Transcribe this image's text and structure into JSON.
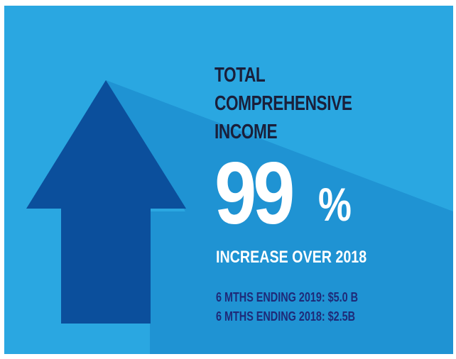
{
  "headline": {
    "lines": [
      "TOTAL",
      "COMPREHENSIVE",
      "INCOME"
    ]
  },
  "metric": {
    "value": "99",
    "unit": "%",
    "caption": "INCREASE OVER 2018"
  },
  "details": [
    "6 MTHS ENDING 2019: $5.0 B",
    "6 MTHS ENDING 2018: $2.5B"
  ],
  "colors": {
    "background": "#2aa7e1",
    "arrow": "#0b4f9c",
    "shadow": "#1f8fd0",
    "headline_text": "#1a1f3a",
    "metric_text": "#ffffff",
    "details_text": "#1e2a78"
  },
  "icons": {
    "arrow": "up-arrow-icon"
  }
}
